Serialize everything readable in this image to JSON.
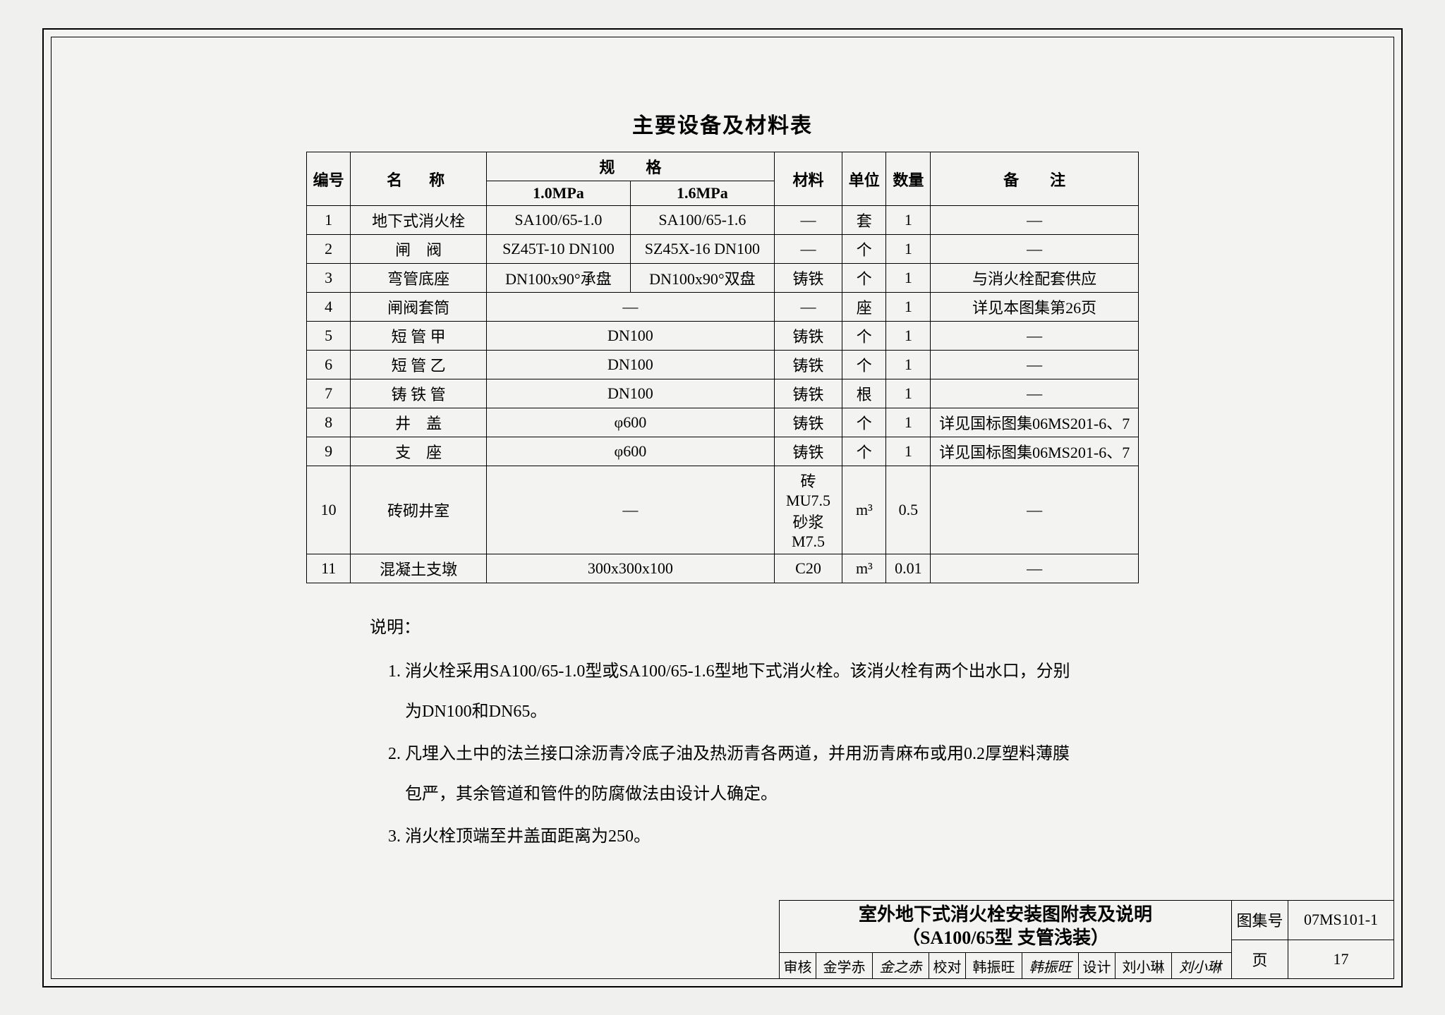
{
  "title": "主要设备及材料表",
  "table": {
    "headers": {
      "no": "编号",
      "name": "名　称",
      "spec": "规　　格",
      "spec_a": "1.0MPa",
      "spec_b": "1.6MPa",
      "material": "材料",
      "unit": "单位",
      "qty": "数量",
      "note": "备　　注"
    },
    "rows": [
      {
        "no": "1",
        "name": "地下式消火栓",
        "spec_a": "SA100/65-1.0",
        "spec_b": "SA100/65-1.6",
        "material": "—",
        "unit": "套",
        "qty": "1",
        "note": "—"
      },
      {
        "no": "2",
        "name": "闸　阀",
        "spec_a": "SZ45T-10 DN100",
        "spec_b": "SZ45X-16 DN100",
        "material": "—",
        "unit": "个",
        "qty": "1",
        "note": "—"
      },
      {
        "no": "3",
        "name": "弯管底座",
        "spec_a": "DN100x90°承盘",
        "spec_b": "DN100x90°双盘",
        "material": "铸铁",
        "unit": "个",
        "qty": "1",
        "note": "与消火栓配套供应"
      },
      {
        "no": "4",
        "name": "闸阀套筒",
        "spec_merged": "—",
        "material": "—",
        "unit": "座",
        "qty": "1",
        "note": "详见本图集第26页"
      },
      {
        "no": "5",
        "name": "短 管 甲",
        "spec_merged": "DN100",
        "material": "铸铁",
        "unit": "个",
        "qty": "1",
        "note": "—"
      },
      {
        "no": "6",
        "name": "短 管 乙",
        "spec_merged": "DN100",
        "material": "铸铁",
        "unit": "个",
        "qty": "1",
        "note": "—"
      },
      {
        "no": "7",
        "name": "铸 铁 管",
        "spec_merged": "DN100",
        "material": "铸铁",
        "unit": "根",
        "qty": "1",
        "note": "—"
      },
      {
        "no": "8",
        "name": "井　盖",
        "spec_merged": "φ600",
        "material": "铸铁",
        "unit": "个",
        "qty": "1",
        "note": "详见国标图集06MS201-6、7"
      },
      {
        "no": "9",
        "name": "支　座",
        "spec_merged": "φ600",
        "material": "铸铁",
        "unit": "个",
        "qty": "1",
        "note": "详见国标图集06MS201-6、7"
      },
      {
        "no": "10",
        "name": "砖砌井室",
        "spec_merged": "—",
        "material": "砖MU7.5\n砂浆M7.5",
        "unit": "m³",
        "qty": "0.5",
        "note": "—"
      },
      {
        "no": "11",
        "name": "混凝土支墩",
        "spec_merged": "300x300x100",
        "material": "C20",
        "unit": "m³",
        "qty": "0.01",
        "note": "—"
      }
    ]
  },
  "notes": {
    "label": "说明：",
    "items": [
      "消火栓采用SA100/65-1.0型或SA100/65-1.6型地下式消火栓。该消火栓有两个出水口，分别为DN100和DN65。",
      "凡埋入土中的法兰接口涂沥青冷底子油及热沥青各两道，并用沥青麻布或用0.2厚塑料薄膜包严，其余管道和管件的防腐做法由设计人确定。",
      "消火栓顶端至井盖面距离为250。"
    ]
  },
  "titleblock": {
    "drawing_title_1": "室外地下式消火栓安装图附表及说明",
    "drawing_title_2": "（SA100/65型  支管浅装）",
    "approve": {
      "review_lbl": "审核",
      "review_name": "金学赤",
      "review_sig": "金之赤",
      "check_lbl": "校对",
      "check_name": "韩振旺",
      "check_sig": "韩振旺",
      "design_lbl": "设计",
      "design_name": "刘小琳",
      "design_sig": "刘小琳"
    },
    "set_no_lbl": "图集号",
    "set_no": "07MS101-1",
    "page_lbl": "页",
    "page_no": "17"
  }
}
